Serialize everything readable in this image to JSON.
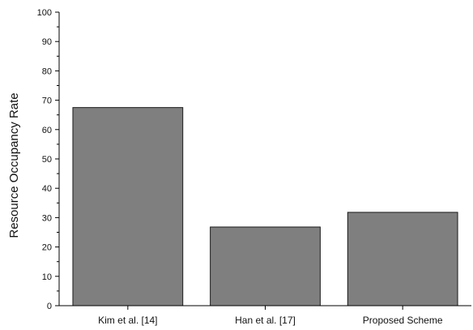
{
  "chart_data": {
    "type": "bar",
    "categories": [
      "Kim et al. [14]",
      "Han et al. [17]",
      "Proposed Scheme"
    ],
    "values": [
      67.5,
      26.8,
      31.8
    ],
    "title": "",
    "xlabel": "",
    "ylabel": "Resource Occupancy Rate",
    "ylim": [
      0,
      100
    ],
    "yticks": [
      0,
      10,
      20,
      30,
      40,
      50,
      60,
      70,
      80,
      90,
      100
    ],
    "grid": false,
    "legend": "none",
    "bar_color": "#7f7f7f",
    "bar_edge_color": "#1a1a1a"
  }
}
